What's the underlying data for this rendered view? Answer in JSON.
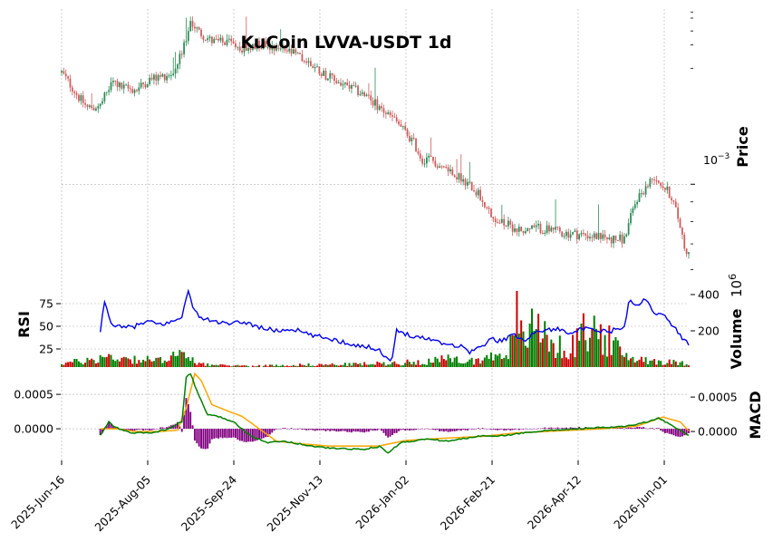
{
  "chart_data": {
    "type": "candlestick",
    "title": "KuCoin LVVA-USDT 1d",
    "x_dates": [
      "2025-Jun-16",
      "2025-Aug-05",
      "2025-Sep-24",
      "2025-Nov-13",
      "2026-Jan-02",
      "2026-Feb-21",
      "2026-Apr-12",
      "2026-Jun-01"
    ],
    "panels": {
      "price": {
        "ylabel": "Price",
        "scale": "log",
        "tick_label_mantissa": "10",
        "tick_label_exponent": "−3",
        "tick_value": 0.001,
        "ylim": [
          0.00057,
          0.00285
        ],
        "up_color": "#2e8b57",
        "down_color": "#cd5c5c",
        "close_anchors": [
          [
            0,
            0.00195
          ],
          [
            8,
            0.00168
          ],
          [
            12,
            0.00158
          ],
          [
            18,
            0.0016
          ],
          [
            24,
            0.00185
          ],
          [
            28,
            0.00178
          ],
          [
            35,
            0.00176
          ],
          [
            40,
            0.00186
          ],
          [
            46,
            0.0019
          ],
          [
            52,
            0.00195
          ],
          [
            56,
            0.00218
          ],
          [
            60,
            0.00265
          ],
          [
            64,
            0.00248
          ],
          [
            70,
            0.00235
          ],
          [
            78,
            0.00232
          ],
          [
            85,
            0.00225
          ],
          [
            92,
            0.00232
          ],
          [
            100,
            0.00228
          ],
          [
            108,
            0.00218
          ],
          [
            116,
            0.00205
          ],
          [
            124,
            0.0019
          ],
          [
            132,
            0.0018
          ],
          [
            140,
            0.00172
          ],
          [
            148,
            0.00158
          ],
          [
            156,
            0.00145
          ],
          [
            164,
            0.00128
          ],
          [
            168,
            0.00115
          ],
          [
            170,
            0.00118
          ],
          [
            176,
            0.00112
          ],
          [
            182,
            0.00108
          ],
          [
            190,
            0.001
          ],
          [
            196,
            0.00092
          ],
          [
            200,
            0.00082
          ],
          [
            206,
            0.00079
          ],
          [
            214,
            0.00076
          ],
          [
            222,
            0.00077
          ],
          [
            232,
            0.00075
          ],
          [
            242,
            0.00074
          ],
          [
            250,
            0.00073
          ],
          [
            256,
            0.00072
          ],
          [
            262,
            0.00072
          ],
          [
            268,
            0.00092
          ],
          [
            272,
            0.00098
          ],
          [
            276,
            0.00105
          ],
          [
            280,
            0.00099
          ],
          [
            284,
            0.00093
          ],
          [
            288,
            0.00078
          ],
          [
            290,
            0.00069
          ],
          [
            292,
            0.00066
          ]
        ]
      },
      "volume": {
        "ylabel": "Volume",
        "scale_mantissa": "10",
        "scale_exponent": "6",
        "ticks": [
          200,
          400
        ],
        "ylim": [
          0,
          450
        ],
        "anchors": [
          [
            0,
            22
          ],
          [
            10,
            32
          ],
          [
            20,
            55
          ],
          [
            28,
            52
          ],
          [
            36,
            42
          ],
          [
            46,
            35
          ],
          [
            50,
            80
          ],
          [
            56,
            60
          ],
          [
            62,
            30
          ],
          [
            70,
            10
          ],
          [
            90,
            7
          ],
          [
            110,
            12
          ],
          [
            130,
            14
          ],
          [
            150,
            20
          ],
          [
            165,
            28
          ],
          [
            180,
            42
          ],
          [
            190,
            32
          ],
          [
            200,
            55
          ],
          [
            210,
            120
          ],
          [
            216,
            190
          ],
          [
            222,
            220
          ],
          [
            230,
            120
          ],
          [
            236,
            80
          ],
          [
            242,
            180
          ],
          [
            248,
            210
          ],
          [
            256,
            130
          ],
          [
            262,
            60
          ],
          [
            270,
            45
          ],
          [
            280,
            30
          ],
          [
            292,
            18
          ]
        ],
        "spikes": [
          [
            212,
            420
          ],
          [
            218,
            240
          ],
          [
            242,
            240
          ],
          [
            220,
            200
          ]
        ]
      },
      "rsi": {
        "ylabel": "RSI",
        "ticks": [
          25,
          50,
          75
        ],
        "ylim": [
          5,
          95
        ],
        "color": "#0000ee",
        "anchors": [
          [
            18,
            42
          ],
          [
            20,
            78
          ],
          [
            22,
            60
          ],
          [
            24,
            52
          ],
          [
            28,
            48
          ],
          [
            34,
            50
          ],
          [
            40,
            55
          ],
          [
            46,
            52
          ],
          [
            52,
            55
          ],
          [
            56,
            62
          ],
          [
            59,
            88
          ],
          [
            62,
            66
          ],
          [
            66,
            58
          ],
          [
            72,
            55
          ],
          [
            78,
            52
          ],
          [
            85,
            55
          ],
          [
            92,
            49
          ],
          [
            100,
            45
          ],
          [
            108,
            47
          ],
          [
            116,
            40
          ],
          [
            124,
            37
          ],
          [
            132,
            32
          ],
          [
            140,
            28
          ],
          [
            148,
            25
          ],
          [
            150,
            16
          ],
          [
            154,
            14
          ],
          [
            156,
            45
          ],
          [
            160,
            42
          ],
          [
            166,
            38
          ],
          [
            172,
            36
          ],
          [
            180,
            30
          ],
          [
            186,
            28
          ],
          [
            190,
            22
          ],
          [
            196,
            28
          ],
          [
            200,
            36
          ],
          [
            204,
            34
          ],
          [
            210,
            40
          ],
          [
            216,
            36
          ],
          [
            222,
            45
          ],
          [
            230,
            47
          ],
          [
            236,
            44
          ],
          [
            244,
            47
          ],
          [
            250,
            44
          ],
          [
            256,
            45
          ],
          [
            262,
            48
          ],
          [
            264,
            78
          ],
          [
            268,
            72
          ],
          [
            272,
            80
          ],
          [
            276,
            66
          ],
          [
            280,
            62
          ],
          [
            284,
            53
          ],
          [
            288,
            40
          ],
          [
            292,
            30
          ]
        ]
      },
      "macd": {
        "ylabel": "MACD",
        "ticks_left": [
          "0.0000",
          "0.0005"
        ],
        "ticks_right": [
          "0.0000",
          "0.0005"
        ],
        "tick_values": [
          0,
          0.0005
        ],
        "ylim": [
          -0.00046,
          0.00087
        ],
        "macd_color": "#008000",
        "signal_color": "#ffa500",
        "hist_color": "#800080",
        "macd_anchors": [
          [
            18,
            -0.0001
          ],
          [
            22,
            0.0001
          ],
          [
            25,
            2e-05
          ],
          [
            32,
            -6e-05
          ],
          [
            42,
            -6e-05
          ],
          [
            50,
            0.0
          ],
          [
            56,
            0.0001
          ],
          [
            58,
            0.00075
          ],
          [
            60,
            0.0008
          ],
          [
            63,
            0.00055
          ],
          [
            68,
            0.0002
          ],
          [
            74,
            0.00017
          ],
          [
            80,
            0.0001
          ],
          [
            88,
            -0.0001
          ],
          [
            96,
            -0.0002
          ],
          [
            104,
            -0.00018
          ],
          [
            116,
            -0.00025
          ],
          [
            124,
            -0.00028
          ],
          [
            140,
            -0.0003
          ],
          [
            148,
            -0.00026
          ],
          [
            152,
            -0.00035
          ],
          [
            158,
            -0.0002
          ],
          [
            170,
            -0.00015
          ],
          [
            180,
            -0.00018
          ],
          [
            196,
            -0.0001
          ],
          [
            206,
            -0.0001
          ],
          [
            220,
            -4e-05
          ],
          [
            240,
            0.0
          ],
          [
            262,
            3e-05
          ],
          [
            270,
            8e-05
          ],
          [
            278,
            0.00015
          ],
          [
            284,
            5e-05
          ],
          [
            292,
            -0.0001
          ]
        ],
        "signal_anchors": [
          [
            18,
            0.0
          ],
          [
            26,
            0.0
          ],
          [
            34,
            -4e-05
          ],
          [
            46,
            -4e-05
          ],
          [
            54,
            -2e-05
          ],
          [
            58,
            0.0003
          ],
          [
            62,
            0.0008
          ],
          [
            65,
            0.0007
          ],
          [
            70,
            0.00035
          ],
          [
            78,
            0.00025
          ],
          [
            84,
            0.00018
          ],
          [
            92,
            0.0
          ],
          [
            100,
            -0.00018
          ],
          [
            112,
            -0.00022
          ],
          [
            124,
            -0.00025
          ],
          [
            136,
            -0.00025
          ],
          [
            148,
            -0.00025
          ],
          [
            160,
            -0.00017
          ],
          [
            176,
            -0.00014
          ],
          [
            196,
            -0.00011
          ],
          [
            212,
            -6e-05
          ],
          [
            232,
            -3e-05
          ],
          [
            252,
            0.0
          ],
          [
            268,
            4e-05
          ],
          [
            280,
            0.00017
          ],
          [
            288,
            0.0001
          ],
          [
            292,
            -3e-05
          ]
        ]
      }
    },
    "n_bars": 293
  }
}
